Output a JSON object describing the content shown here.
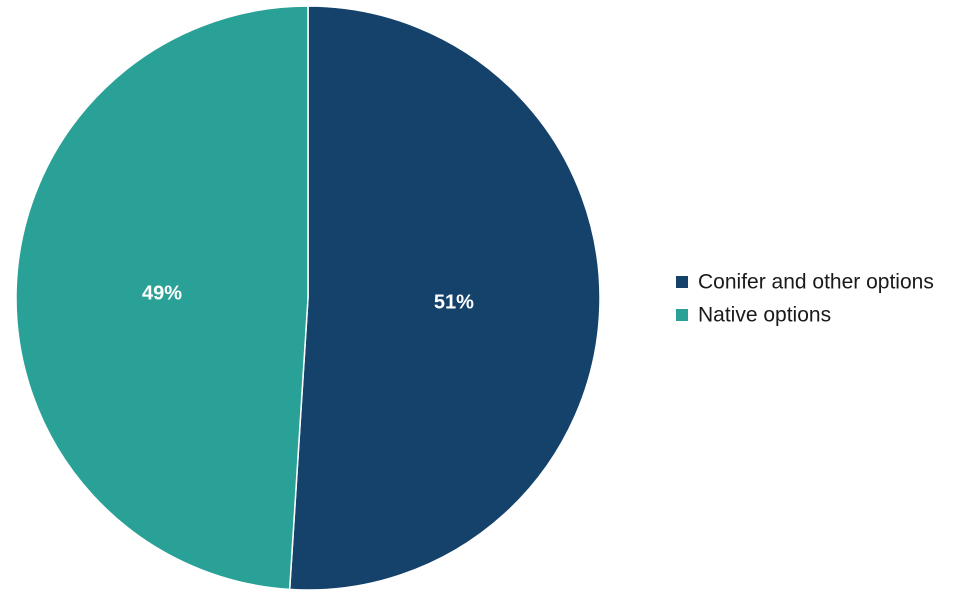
{
  "chart_data": {
    "type": "pie",
    "title": "",
    "legend_position": "right",
    "slices": [
      {
        "name": "Conifer and other options",
        "value": 51,
        "label": "51%",
        "color": "#14426a"
      },
      {
        "name": "Native options",
        "value": 49,
        "label": "49%",
        "color": "#2aa197"
      }
    ]
  }
}
